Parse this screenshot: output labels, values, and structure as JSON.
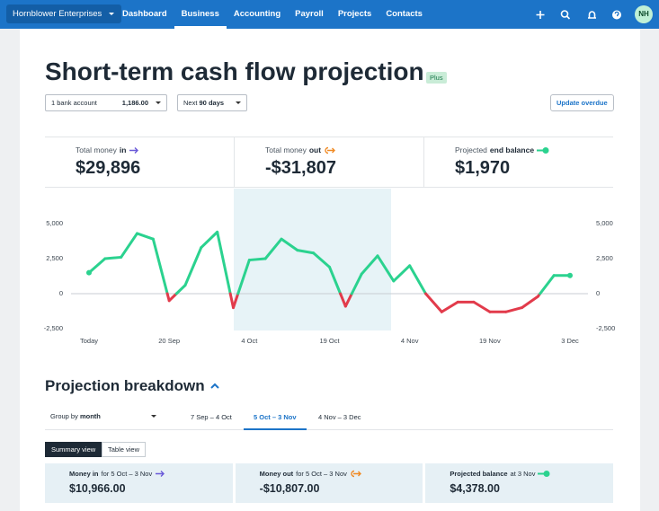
{
  "nav": {
    "org": "Hornblower Enterprises",
    "items": [
      "Dashboard",
      "Business",
      "Accounting",
      "Payroll",
      "Projects",
      "Contacts"
    ],
    "active": 1,
    "avatar": "NH"
  },
  "header": {
    "title": "Short-term cash flow projection",
    "badge": "Plus"
  },
  "controls": {
    "account": "1 bank account",
    "account_balance": "1,186.00",
    "period_prefix": "Next",
    "period": "90 days",
    "update": "Update overdue"
  },
  "summary": [
    {
      "label": "Total money",
      "emphasis": "in",
      "value": "$29,896"
    },
    {
      "label": "Total money",
      "emphasis": "out",
      "value": "-$31,807"
    },
    {
      "label": "Projected",
      "emphasis": "end balance",
      "value": "$1,970"
    }
  ],
  "chart_data": {
    "type": "line",
    "categories": [
      "Today",
      null,
      null,
      null,
      null,
      "20 Sep",
      null,
      null,
      null,
      null,
      "4 Oct",
      null,
      null,
      null,
      null,
      "19 Oct",
      null,
      null,
      null,
      null,
      "4 Nov",
      null,
      null,
      null,
      null,
      "19 Nov",
      null,
      null,
      null,
      null,
      "3 Dec"
    ],
    "series": [
      {
        "color": "#2bd28f",
        "negative_color": "#e23b4b",
        "values": [
          1500,
          2500,
          2600,
          4300,
          3900,
          -500,
          600,
          3300,
          4400,
          -1000,
          2400,
          2500,
          3900,
          3100,
          2900,
          1900,
          -900,
          1400,
          2700,
          900,
          2000,
          0,
          -1300,
          -600,
          -600,
          -1300,
          -1300,
          -1000,
          -200,
          1300,
          1300
        ]
      }
    ],
    "ylim": [
      -2500,
      5000
    ],
    "yticks": [
      {
        "value": -2500,
        "label": "-2,500"
      },
      0,
      {
        "value": 2500,
        "label": "2,500"
      },
      {
        "value": 5000,
        "label": "5,000"
      }
    ],
    "zero_line": true
  },
  "breakdown": {
    "title": "Projection breakdown",
    "group_prefix": "Group by",
    "group": "month",
    "tabs": [
      "7 Sep – 4 Oct",
      "5 Oct – 3 Nov",
      "4 Nov – 3 Dec"
    ],
    "active_tab": 1,
    "views": [
      "Summary view",
      "Table view"
    ],
    "cards": [
      {
        "label": "Money in",
        "suffix": "for 5 Oct – 3 Nov",
        "value": "$10,966.00"
      },
      {
        "label": "Money out",
        "suffix": "for 5 Oct – 3 Nov",
        "value": "-$10,807.00"
      },
      {
        "label": "Projected balance",
        "suffix": "at 3 Nov",
        "value": "$4,378.00"
      }
    ]
  }
}
